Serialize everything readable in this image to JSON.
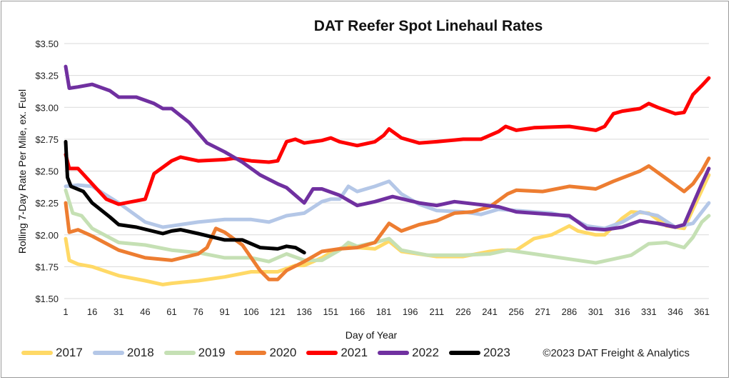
{
  "chart_data": {
    "type": "line",
    "title": "DAT Reefer Spot Linehaul Rates",
    "xlabel": "Day of Year",
    "ylabel": "Rolling 7-Day Rate Per Mile, ex. Fuel",
    "xlim": [
      1,
      365
    ],
    "ylim": [
      1.5,
      3.5
    ],
    "x_ticks": [
      1,
      16,
      31,
      46,
      61,
      76,
      91,
      106,
      121,
      136,
      151,
      166,
      181,
      196,
      211,
      226,
      241,
      256,
      271,
      286,
      301,
      316,
      331,
      346,
      361
    ],
    "y_ticks": [
      1.5,
      1.75,
      2.0,
      2.25,
      2.5,
      2.75,
      3.0,
      3.25,
      3.5
    ],
    "y_tick_labels": [
      "$1.50",
      "$1.75",
      "$2.00",
      "$2.25",
      "$2.50",
      "$2.75",
      "$3.00",
      "$3.25",
      "$3.50"
    ],
    "grid": "horizontal",
    "legend_placement": "bottom",
    "copyright": "©2023 DAT Freight & Analytics",
    "series": [
      {
        "name": "2017",
        "color": "#FFD966",
        "points": [
          [
            1,
            1.97
          ],
          [
            3,
            1.8
          ],
          [
            8,
            1.77
          ],
          [
            16,
            1.75
          ],
          [
            31,
            1.68
          ],
          [
            46,
            1.64
          ],
          [
            56,
            1.61
          ],
          [
            61,
            1.62
          ],
          [
            76,
            1.64
          ],
          [
            91,
            1.67
          ],
          [
            106,
            1.71
          ],
          [
            121,
            1.71
          ],
          [
            131,
            1.76
          ],
          [
            136,
            1.76
          ],
          [
            146,
            1.82
          ],
          [
            151,
            1.86
          ],
          [
            161,
            1.92
          ],
          [
            166,
            1.9
          ],
          [
            176,
            1.89
          ],
          [
            184,
            1.95
          ],
          [
            191,
            1.87
          ],
          [
            211,
            1.83
          ],
          [
            226,
            1.83
          ],
          [
            241,
            1.87
          ],
          [
            248,
            1.88
          ],
          [
            256,
            1.88
          ],
          [
            266,
            1.97
          ],
          [
            276,
            2.0
          ],
          [
            286,
            2.07
          ],
          [
            291,
            2.03
          ],
          [
            301,
            2.0
          ],
          [
            306,
            2.0
          ],
          [
            316,
            2.13
          ],
          [
            321,
            2.18
          ],
          [
            331,
            2.17
          ],
          [
            341,
            2.07
          ],
          [
            351,
            2.05
          ],
          [
            356,
            2.2
          ],
          [
            361,
            2.35
          ],
          [
            365,
            2.47
          ]
        ]
      },
      {
        "name": "2018",
        "color": "#B4C7E7",
        "points": [
          [
            1,
            2.38
          ],
          [
            8,
            2.39
          ],
          [
            16,
            2.38
          ],
          [
            31,
            2.25
          ],
          [
            46,
            2.1
          ],
          [
            56,
            2.06
          ],
          [
            61,
            2.07
          ],
          [
            76,
            2.1
          ],
          [
            91,
            2.12
          ],
          [
            106,
            2.12
          ],
          [
            116,
            2.1
          ],
          [
            126,
            2.15
          ],
          [
            136,
            2.17
          ],
          [
            146,
            2.26
          ],
          [
            151,
            2.28
          ],
          [
            156,
            2.28
          ],
          [
            161,
            2.38
          ],
          [
            166,
            2.34
          ],
          [
            176,
            2.38
          ],
          [
            184,
            2.42
          ],
          [
            191,
            2.32
          ],
          [
            201,
            2.24
          ],
          [
            211,
            2.19
          ],
          [
            226,
            2.18
          ],
          [
            236,
            2.16
          ],
          [
            246,
            2.2
          ],
          [
            256,
            2.19
          ],
          [
            276,
            2.17
          ],
          [
            286,
            2.14
          ],
          [
            296,
            2.07
          ],
          [
            306,
            2.05
          ],
          [
            316,
            2.1
          ],
          [
            326,
            2.18
          ],
          [
            336,
            2.15
          ],
          [
            346,
            2.06
          ],
          [
            356,
            2.09
          ],
          [
            365,
            2.25
          ]
        ]
      },
      {
        "name": "2019",
        "color": "#C5E0B4",
        "points": [
          [
            1,
            2.35
          ],
          [
            5,
            2.17
          ],
          [
            10,
            2.15
          ],
          [
            16,
            2.05
          ],
          [
            31,
            1.94
          ],
          [
            46,
            1.92
          ],
          [
            61,
            1.88
          ],
          [
            76,
            1.86
          ],
          [
            91,
            1.82
          ],
          [
            106,
            1.82
          ],
          [
            116,
            1.79
          ],
          [
            126,
            1.85
          ],
          [
            136,
            1.8
          ],
          [
            146,
            1.8
          ],
          [
            156,
            1.88
          ],
          [
            161,
            1.94
          ],
          [
            166,
            1.91
          ],
          [
            176,
            1.94
          ],
          [
            184,
            1.97
          ],
          [
            191,
            1.88
          ],
          [
            206,
            1.84
          ],
          [
            226,
            1.84
          ],
          [
            241,
            1.85
          ],
          [
            251,
            1.88
          ],
          [
            266,
            1.85
          ],
          [
            286,
            1.81
          ],
          [
            301,
            1.78
          ],
          [
            311,
            1.81
          ],
          [
            321,
            1.84
          ],
          [
            331,
            1.93
          ],
          [
            341,
            1.94
          ],
          [
            351,
            1.9
          ],
          [
            356,
            1.98
          ],
          [
            361,
            2.1
          ],
          [
            365,
            2.15
          ]
        ]
      },
      {
        "name": "2020",
        "color": "#ED7D31",
        "points": [
          [
            1,
            2.25
          ],
          [
            3,
            2.02
          ],
          [
            8,
            2.04
          ],
          [
            16,
            1.99
          ],
          [
            31,
            1.88
          ],
          [
            46,
            1.82
          ],
          [
            61,
            1.8
          ],
          [
            76,
            1.85
          ],
          [
            81,
            1.9
          ],
          [
            86,
            2.05
          ],
          [
            91,
            2.02
          ],
          [
            101,
            1.92
          ],
          [
            111,
            1.72
          ],
          [
            116,
            1.65
          ],
          [
            121,
            1.65
          ],
          [
            126,
            1.72
          ],
          [
            136,
            1.79
          ],
          [
            146,
            1.87
          ],
          [
            156,
            1.89
          ],
          [
            166,
            1.9
          ],
          [
            176,
            1.94
          ],
          [
            184,
            2.09
          ],
          [
            191,
            2.03
          ],
          [
            201,
            2.08
          ],
          [
            211,
            2.11
          ],
          [
            221,
            2.17
          ],
          [
            231,
            2.18
          ],
          [
            241,
            2.22
          ],
          [
            251,
            2.32
          ],
          [
            256,
            2.35
          ],
          [
            271,
            2.34
          ],
          [
            286,
            2.38
          ],
          [
            301,
            2.36
          ],
          [
            311,
            2.42
          ],
          [
            326,
            2.5
          ],
          [
            331,
            2.54
          ],
          [
            341,
            2.44
          ],
          [
            351,
            2.34
          ],
          [
            356,
            2.4
          ],
          [
            361,
            2.5
          ],
          [
            365,
            2.6
          ]
        ]
      },
      {
        "name": "2021",
        "color": "#FF0000",
        "points": [
          [
            1,
            2.63
          ],
          [
            3,
            2.52
          ],
          [
            8,
            2.52
          ],
          [
            16,
            2.4
          ],
          [
            24,
            2.28
          ],
          [
            31,
            2.24
          ],
          [
            46,
            2.28
          ],
          [
            51,
            2.48
          ],
          [
            61,
            2.58
          ],
          [
            66,
            2.61
          ],
          [
            76,
            2.58
          ],
          [
            91,
            2.59
          ],
          [
            96,
            2.6
          ],
          [
            106,
            2.58
          ],
          [
            116,
            2.57
          ],
          [
            121,
            2.58
          ],
          [
            126,
            2.73
          ],
          [
            131,
            2.75
          ],
          [
            136,
            2.72
          ],
          [
            146,
            2.74
          ],
          [
            151,
            2.76
          ],
          [
            156,
            2.73
          ],
          [
            166,
            2.7
          ],
          [
            176,
            2.73
          ],
          [
            181,
            2.78
          ],
          [
            184,
            2.83
          ],
          [
            191,
            2.76
          ],
          [
            201,
            2.72
          ],
          [
            211,
            2.73
          ],
          [
            226,
            2.75
          ],
          [
            236,
            2.75
          ],
          [
            246,
            2.81
          ],
          [
            250,
            2.85
          ],
          [
            256,
            2.82
          ],
          [
            266,
            2.84
          ],
          [
            286,
            2.85
          ],
          [
            301,
            2.82
          ],
          [
            306,
            2.85
          ],
          [
            311,
            2.95
          ],
          [
            316,
            2.97
          ],
          [
            326,
            2.99
          ],
          [
            331,
            3.03
          ],
          [
            336,
            3.0
          ],
          [
            346,
            2.95
          ],
          [
            351,
            2.96
          ],
          [
            356,
            3.1
          ],
          [
            361,
            3.17
          ],
          [
            365,
            3.23
          ]
        ]
      },
      {
        "name": "2022",
        "color": "#7030A0",
        "points": [
          [
            1,
            3.32
          ],
          [
            3,
            3.15
          ],
          [
            8,
            3.16
          ],
          [
            16,
            3.18
          ],
          [
            26,
            3.13
          ],
          [
            31,
            3.08
          ],
          [
            41,
            3.08
          ],
          [
            51,
            3.03
          ],
          [
            56,
            2.99
          ],
          [
            61,
            2.99
          ],
          [
            71,
            2.88
          ],
          [
            81,
            2.72
          ],
          [
            91,
            2.65
          ],
          [
            101,
            2.57
          ],
          [
            111,
            2.47
          ],
          [
            121,
            2.4
          ],
          [
            126,
            2.37
          ],
          [
            136,
            2.25
          ],
          [
            141,
            2.36
          ],
          [
            146,
            2.36
          ],
          [
            156,
            2.31
          ],
          [
            166,
            2.23
          ],
          [
            176,
            2.26
          ],
          [
            186,
            2.3
          ],
          [
            201,
            2.25
          ],
          [
            211,
            2.23
          ],
          [
            221,
            2.26
          ],
          [
            246,
            2.22
          ],
          [
            256,
            2.18
          ],
          [
            276,
            2.16
          ],
          [
            286,
            2.15
          ],
          [
            296,
            2.05
          ],
          [
            306,
            2.04
          ],
          [
            316,
            2.06
          ],
          [
            326,
            2.11
          ],
          [
            336,
            2.09
          ],
          [
            346,
            2.06
          ],
          [
            351,
            2.08
          ],
          [
            356,
            2.24
          ],
          [
            361,
            2.4
          ],
          [
            365,
            2.52
          ]
        ]
      },
      {
        "name": "2023",
        "color": "#000000",
        "points": [
          [
            1,
            2.73
          ],
          [
            2,
            2.45
          ],
          [
            4,
            2.38
          ],
          [
            11,
            2.34
          ],
          [
            16,
            2.25
          ],
          [
            26,
            2.14
          ],
          [
            31,
            2.08
          ],
          [
            41,
            2.06
          ],
          [
            56,
            2.01
          ],
          [
            61,
            2.03
          ],
          [
            66,
            2.04
          ],
          [
            76,
            2.01
          ],
          [
            91,
            1.96
          ],
          [
            101,
            1.96
          ],
          [
            111,
            1.9
          ],
          [
            121,
            1.89
          ],
          [
            126,
            1.91
          ],
          [
            131,
            1.9
          ],
          [
            136,
            1.86
          ]
        ]
      }
    ]
  }
}
